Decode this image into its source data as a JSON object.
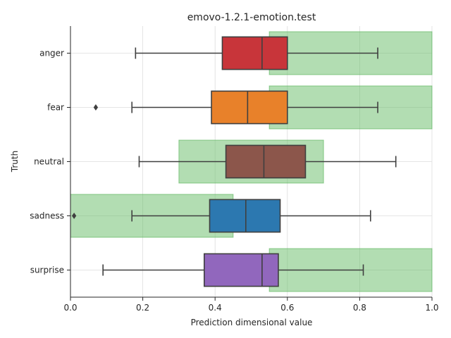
{
  "chart_data": {
    "type": "box",
    "title": "emovo-1.2.1-emotion.test",
    "xlabel": "Prediction dimensional value",
    "ylabel": "Truth",
    "xlim": [
      0,
      1
    ],
    "xticks": [
      0,
      0.2,
      0.4,
      0.6,
      0.8,
      1.0
    ],
    "xtick_labels": [
      "0.0",
      "0.2",
      "0.4",
      "0.6",
      "0.8",
      "1.0"
    ],
    "grid": true,
    "categories": [
      "anger",
      "fear",
      "neutral",
      "sadness",
      "surprise"
    ],
    "boxes": [
      {
        "category": "anger",
        "whisker_low": 0.18,
        "q1": 0.42,
        "median": 0.53,
        "q3": 0.6,
        "whisker_high": 0.85,
        "outliers": [],
        "color": "#c8353a",
        "range": [
          0.55,
          1.0
        ]
      },
      {
        "category": "fear",
        "whisker_low": 0.17,
        "q1": 0.39,
        "median": 0.49,
        "q3": 0.6,
        "whisker_high": 0.85,
        "outliers": [
          0.07
        ],
        "color": "#e8812a",
        "range": [
          0.55,
          1.0
        ]
      },
      {
        "category": "neutral",
        "whisker_low": 0.19,
        "q1": 0.43,
        "median": 0.535,
        "q3": 0.65,
        "whisker_high": 0.9,
        "outliers": [],
        "color": "#8c564b",
        "range": [
          0.3,
          0.7
        ]
      },
      {
        "category": "sadness",
        "whisker_low": 0.17,
        "q1": 0.385,
        "median": 0.485,
        "q3": 0.58,
        "whisker_high": 0.83,
        "outliers": [
          0.01
        ],
        "color": "#2c78b0",
        "range": [
          0.0,
          0.45
        ]
      },
      {
        "category": "surprise",
        "whisker_low": 0.09,
        "q1": 0.37,
        "median": 0.53,
        "q3": 0.575,
        "whisker_high": 0.81,
        "outliers": [],
        "color": "#9167bd",
        "range": [
          0.55,
          1.0
        ]
      }
    ],
    "range_color": "#66bb66"
  }
}
